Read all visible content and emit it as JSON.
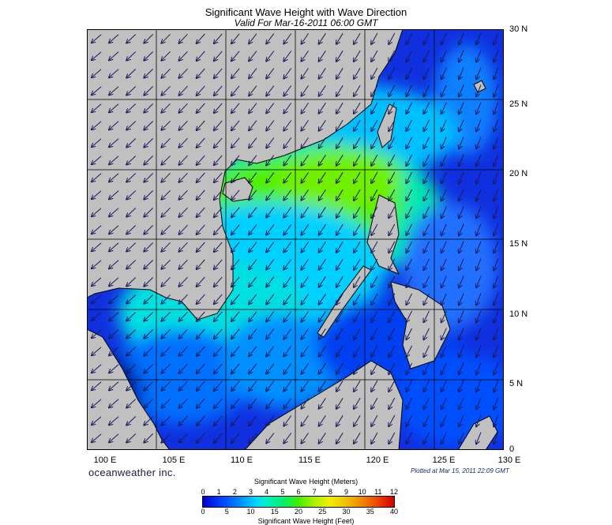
{
  "title": "Significant Wave Height with Wave Direction",
  "subtitle": "Valid For Mar-16-2011 06:00 GMT",
  "lat_labels": [
    "30 N",
    "25 N",
    "20 N",
    "15 N",
    "10 N",
    "5 N",
    "0"
  ],
  "lon_labels": [
    "100 E",
    "105 E",
    "110 E",
    "115 E",
    "120 E",
    "125 E",
    "130 E"
  ],
  "brand": "oceanweather inc.",
  "plotted": "Plotted at Mar 15, 2011 22:09 GMT",
  "colorbar": {
    "title_meters": "Significant Wave Height (Meters)",
    "title_feet": "Significant Wave Height (Feet)",
    "meter_ticks": [
      "0",
      "1",
      "2",
      "3",
      "4",
      "5",
      "6",
      "7",
      "8",
      "9",
      "10",
      "11",
      "12"
    ],
    "feet_ticks": [
      "0",
      "5",
      "10",
      "15",
      "20",
      "25",
      "30",
      "35",
      "40"
    ]
  },
  "colors": {
    "land": "#c0c0c0",
    "arrow": "#1a1a5a",
    "grid": "#000000"
  }
}
